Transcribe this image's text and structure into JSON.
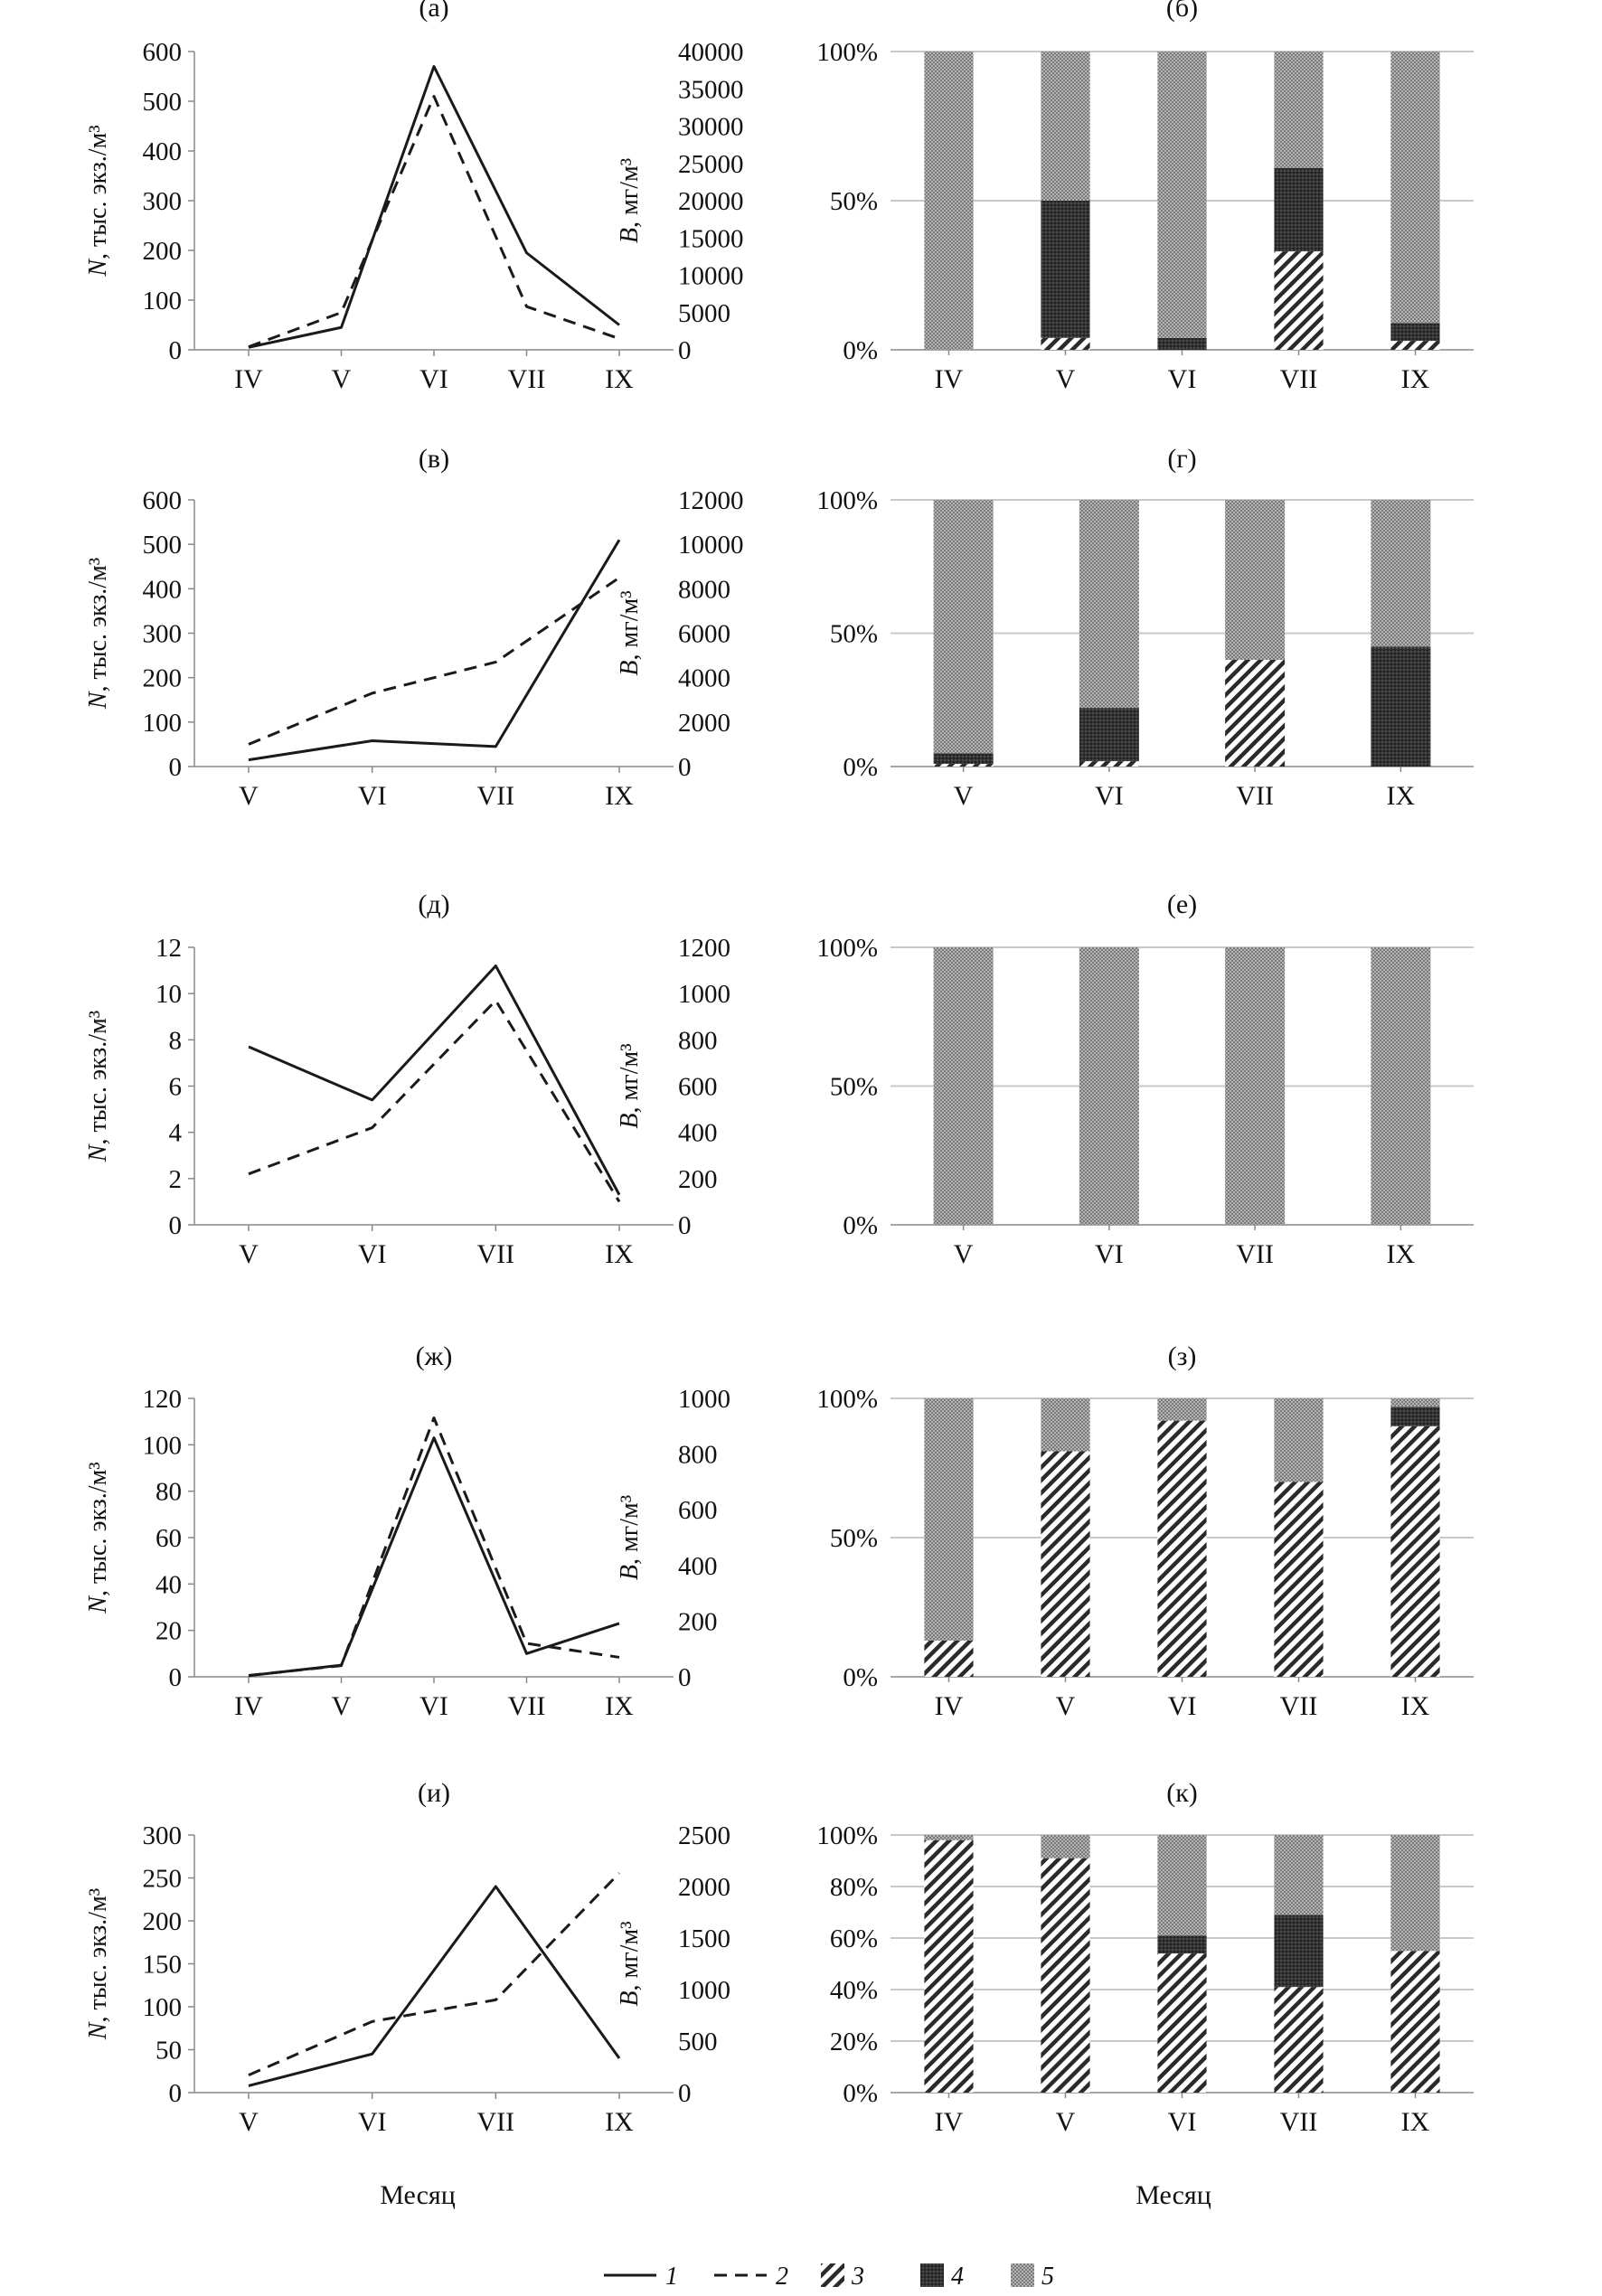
{
  "figure": {
    "xlabel_left": "Месяц",
    "xlabel_right": "Месяц",
    "n_axis_label": "N, тыс. экз./м³",
    "b_axis_label": "B, мг/м³",
    "legend": [
      {
        "key": "1",
        "label": "1",
        "style": "solid"
      },
      {
        "key": "2",
        "label": "2",
        "style": "dashed"
      },
      {
        "key": "3",
        "label": "3",
        "style": "hatch"
      },
      {
        "key": "4",
        "label": "4",
        "style": "dark"
      },
      {
        "key": "5",
        "label": "5",
        "style": "light"
      }
    ]
  },
  "colors": {
    "line": "#222222",
    "grid": "#c8c8c8",
    "hatch": "#2a2a2a",
    "dark": "#3a3a3a",
    "light": "#9a9a9a"
  },
  "chart_data": [
    {
      "id": "a",
      "panel_label": "(а)",
      "type": "line",
      "categories": [
        "IV",
        "V",
        "VI",
        "VII",
        "IX"
      ],
      "ylabel": "N, тыс. экз./м³",
      "ylim": [
        0,
        600
      ],
      "yticks": [
        "0",
        "100",
        "200",
        "300",
        "400",
        "500",
        "600"
      ],
      "y2label": "B, мг/м³",
      "y2lim": [
        0,
        40000
      ],
      "y2ticks": [
        "0",
        "5000",
        "10000",
        "15000",
        "20000",
        "25000",
        "30000",
        "35000",
        "40000"
      ],
      "series": [
        {
          "name": "1",
          "axis": "left",
          "style": "solid",
          "values": [
            5,
            45,
            570,
            195,
            50
          ]
        },
        {
          "name": "2",
          "axis": "right",
          "style": "dashed",
          "values": [
            400,
            5000,
            34000,
            5800,
            1500
          ]
        }
      ]
    },
    {
      "id": "b",
      "panel_label": "(б)",
      "type": "bar",
      "categories": [
        "IV",
        "V",
        "VI",
        "VII",
        "IX"
      ],
      "yticks": [
        "0%",
        "50%",
        "100%"
      ],
      "series": [
        {
          "name": "3",
          "values": [
            0,
            4,
            0,
            33,
            3
          ]
        },
        {
          "name": "4",
          "values": [
            0,
            46,
            4,
            28,
            6
          ]
        },
        {
          "name": "5",
          "values": [
            100,
            50,
            96,
            39,
            91
          ]
        }
      ]
    },
    {
      "id": "c",
      "panel_label": "(в)",
      "type": "line",
      "categories": [
        "V",
        "VI",
        "VII",
        "IX"
      ],
      "ylabel": "N, тыс. экз./м³",
      "ylim": [
        0,
        600
      ],
      "yticks": [
        "0",
        "100",
        "200",
        "300",
        "400",
        "500",
        "600"
      ],
      "y2label": "B, мг/м³",
      "y2lim": [
        0,
        12000
      ],
      "y2ticks": [
        "0",
        "2000",
        "4000",
        "6000",
        "8000",
        "10000",
        "12000"
      ],
      "series": [
        {
          "name": "1",
          "axis": "left",
          "style": "solid",
          "values": [
            15,
            58,
            45,
            510
          ]
        },
        {
          "name": "2",
          "axis": "right",
          "style": "dashed",
          "values": [
            1000,
            3300,
            4700,
            8500
          ]
        }
      ]
    },
    {
      "id": "d",
      "panel_label": "(г)",
      "type": "bar",
      "categories": [
        "V",
        "VI",
        "VII",
        "IX"
      ],
      "yticks": [
        "0%",
        "50%",
        "100%"
      ],
      "series": [
        {
          "name": "3",
          "values": [
            1,
            2,
            40,
            0
          ]
        },
        {
          "name": "4",
          "values": [
            4,
            20,
            0,
            45
          ]
        },
        {
          "name": "5",
          "values": [
            95,
            78,
            60,
            55
          ]
        }
      ]
    },
    {
      "id": "e",
      "panel_label": "(д)",
      "type": "line",
      "categories": [
        "V",
        "VI",
        "VII",
        "IX"
      ],
      "ylabel": "N, тыс. экз./м³",
      "ylim": [
        0,
        12
      ],
      "yticks": [
        "0",
        "2",
        "4",
        "6",
        "8",
        "10",
        "12"
      ],
      "y2label": "B, мг/м³",
      "y2lim": [
        0,
        1200
      ],
      "y2ticks": [
        "0",
        "200",
        "400",
        "600",
        "800",
        "1000",
        "1200"
      ],
      "series": [
        {
          "name": "1",
          "axis": "left",
          "style": "solid",
          "values": [
            7.7,
            5.4,
            11.2,
            1.3
          ]
        },
        {
          "name": "2",
          "axis": "right",
          "style": "dashed",
          "values": [
            220,
            420,
            970,
            100
          ]
        }
      ]
    },
    {
      "id": "f",
      "panel_label": "(е)",
      "type": "bar",
      "categories": [
        "V",
        "VI",
        "VII",
        "IX"
      ],
      "yticks": [
        "0%",
        "50%",
        "100%"
      ],
      "series": [
        {
          "name": "3",
          "values": [
            0,
            0,
            0,
            0
          ]
        },
        {
          "name": "4",
          "values": [
            0,
            0,
            0,
            0
          ]
        },
        {
          "name": "5",
          "values": [
            100,
            100,
            100,
            100
          ]
        }
      ]
    },
    {
      "id": "g",
      "panel_label": "(ж)",
      "type": "line",
      "categories": [
        "IV",
        "V",
        "VI",
        "VII",
        "IX"
      ],
      "ylabel": "N, тыс. экз./м³",
      "ylim": [
        0,
        120
      ],
      "yticks": [
        "0",
        "20",
        "40",
        "60",
        "80",
        "100",
        "120"
      ],
      "y2label": "B, мг/м³",
      "y2lim": [
        0,
        1000
      ],
      "y2ticks": [
        "0",
        "200",
        "400",
        "600",
        "800",
        "1000"
      ],
      "series": [
        {
          "name": "1",
          "axis": "left",
          "style": "solid",
          "values": [
            0.5,
            5,
            103,
            10,
            23
          ]
        },
        {
          "name": "2",
          "axis": "right",
          "style": "dashed",
          "values": [
            5,
            40,
            930,
            120,
            70
          ]
        }
      ]
    },
    {
      "id": "h",
      "panel_label": "(з)",
      "type": "bar",
      "categories": [
        "IV",
        "V",
        "VI",
        "VII",
        "IX"
      ],
      "yticks": [
        "0%",
        "50%",
        "100%"
      ],
      "series": [
        {
          "name": "3",
          "values": [
            13,
            81,
            92,
            70,
            90
          ]
        },
        {
          "name": "4",
          "values": [
            0,
            0,
            0,
            0,
            7
          ]
        },
        {
          "name": "5",
          "values": [
            87,
            19,
            8,
            30,
            3
          ]
        }
      ]
    },
    {
      "id": "i",
      "panel_label": "(и)",
      "type": "line",
      "categories": [
        "V",
        "VI",
        "VII",
        "IX"
      ],
      "ylabel": "N, тыс. экз./м³",
      "ylim": [
        0,
        300
      ],
      "yticks": [
        "0",
        "50",
        "100",
        "150",
        "200",
        "250",
        "300"
      ],
      "y2label": "B, мг/м³",
      "y2lim": [
        0,
        2500
      ],
      "y2ticks": [
        "0",
        "500",
        "1000",
        "1500",
        "2000",
        "2500"
      ],
      "series": [
        {
          "name": "1",
          "axis": "left",
          "style": "solid",
          "values": [
            8,
            45,
            240,
            40
          ]
        },
        {
          "name": "2",
          "axis": "right",
          "style": "dashed",
          "values": [
            170,
            690,
            900,
            2130
          ]
        }
      ]
    },
    {
      "id": "k",
      "panel_label": "(к)",
      "type": "bar",
      "categories": [
        "IV",
        "V",
        "VI",
        "VII",
        "IX"
      ],
      "yticks": [
        "0%",
        "20%",
        "40%",
        "60%",
        "80%",
        "100%"
      ],
      "series": [
        {
          "name": "3",
          "values": [
            98,
            91,
            54,
            41,
            55
          ]
        },
        {
          "name": "4",
          "values": [
            0,
            0,
            7,
            28,
            0
          ]
        },
        {
          "name": "5",
          "values": [
            2,
            9,
            39,
            31,
            45
          ]
        }
      ]
    }
  ]
}
